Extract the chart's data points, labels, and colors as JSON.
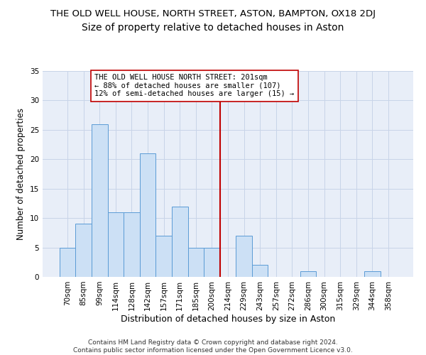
{
  "title": "THE OLD WELL HOUSE, NORTH STREET, ASTON, BAMPTON, OX18 2DJ",
  "subtitle": "Size of property relative to detached houses in Aston",
  "xlabel": "Distribution of detached houses by size in Aston",
  "ylabel": "Number of detached properties",
  "bar_labels": [
    "70sqm",
    "85sqm",
    "99sqm",
    "114sqm",
    "128sqm",
    "142sqm",
    "157sqm",
    "171sqm",
    "185sqm",
    "200sqm",
    "214sqm",
    "229sqm",
    "243sqm",
    "257sqm",
    "272sqm",
    "286sqm",
    "300sqm",
    "315sqm",
    "329sqm",
    "344sqm",
    "358sqm"
  ],
  "bar_values": [
    5,
    9,
    26,
    11,
    11,
    21,
    7,
    12,
    5,
    5,
    0,
    7,
    2,
    0,
    0,
    1,
    0,
    0,
    0,
    1,
    0
  ],
  "bar_color": "#cce0f5",
  "bar_edgecolor": "#5b9bd5",
  "vline_x": 9.5,
  "vline_color": "#c00000",
  "annotation_text": "THE OLD WELL HOUSE NORTH STREET: 201sqm\n← 88% of detached houses are smaller (107)\n12% of semi-detached houses are larger (15) →",
  "annotation_box_color": "#ffffff",
  "annotation_box_edgecolor": "#c00000",
  "ylim": [
    0,
    35
  ],
  "yticks": [
    0,
    5,
    10,
    15,
    20,
    25,
    30,
    35
  ],
  "grid_color": "#c8d4e8",
  "background_color": "#e8eef8",
  "footer": "Contains HM Land Registry data © Crown copyright and database right 2024.\nContains public sector information licensed under the Open Government Licence v3.0.",
  "title_fontsize": 9.5,
  "subtitle_fontsize": 10,
  "xlabel_fontsize": 9,
  "ylabel_fontsize": 8.5,
  "tick_fontsize": 7.5,
  "annotation_fontsize": 7.5,
  "footer_fontsize": 6.5
}
